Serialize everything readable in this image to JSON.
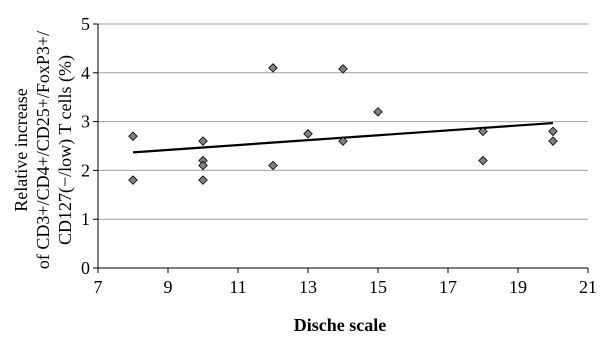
{
  "chart_data": {
    "type": "scatter",
    "xlabel": "Dische scale",
    "ylabel_lines": [
      "Relative increase",
      "of CD3+/CD4+/CD25+/FoxP3+/",
      "CD127(−/low) T cells (%)"
    ],
    "xlim": [
      7,
      21
    ],
    "ylim": [
      0,
      5
    ],
    "x_ticks": [
      7,
      9,
      11,
      13,
      15,
      17,
      19,
      21
    ],
    "y_ticks": [
      0,
      1,
      2,
      3,
      4,
      5
    ],
    "grid": "horizontal",
    "points": [
      {
        "x": 8,
        "y": 2.7
      },
      {
        "x": 8,
        "y": 1.8
      },
      {
        "x": 10,
        "y": 2.6
      },
      {
        "x": 10,
        "y": 2.2
      },
      {
        "x": 10,
        "y": 2.1
      },
      {
        "x": 10,
        "y": 1.8
      },
      {
        "x": 12,
        "y": 4.1
      },
      {
        "x": 12,
        "y": 2.1
      },
      {
        "x": 13,
        "y": 2.75
      },
      {
        "x": 14,
        "y": 4.08
      },
      {
        "x": 14,
        "y": 2.6
      },
      {
        "x": 15,
        "y": 3.2
      },
      {
        "x": 18,
        "y": 2.8
      },
      {
        "x": 18,
        "y": 2.2
      },
      {
        "x": 20,
        "y": 2.8
      },
      {
        "x": 20,
        "y": 2.6
      }
    ],
    "trendline": {
      "x": [
        8,
        20
      ],
      "y": [
        2.37,
        2.97
      ]
    },
    "colors": {
      "marker_fill": "#808080",
      "marker_stroke": "#000000",
      "trendline": "#000000",
      "grid": "#a0a0a0",
      "axis": "#000000"
    }
  }
}
